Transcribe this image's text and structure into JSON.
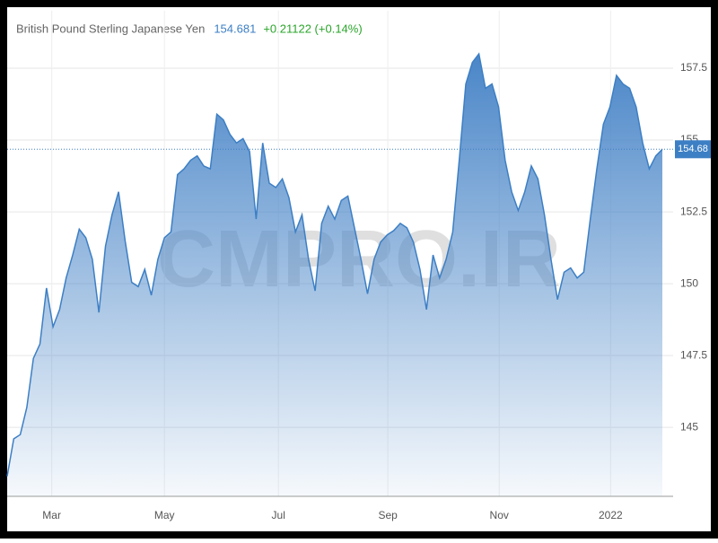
{
  "chart_data": {
    "type": "area",
    "title": "British Pound Sterling Japanese Yen",
    "price": "154.681",
    "change": "+0.21122 (+0.14%)",
    "watermark": "CMPRO.IR",
    "series": [
      {
        "name": "British Pound Sterling Japanese Yen",
        "color": "#3d7fc4",
        "values": [
          143.3,
          144.6,
          144.75,
          145.7,
          147.4,
          147.9,
          149.85,
          148.5,
          149.1,
          150.2,
          151.0,
          151.9,
          151.6,
          150.85,
          149.0,
          151.3,
          152.4,
          153.2,
          151.5,
          150.05,
          149.9,
          150.5,
          149.6,
          150.85,
          151.6,
          151.8,
          153.8,
          154.0,
          154.3,
          154.45,
          154.1,
          154.0,
          155.9,
          155.7,
          155.2,
          154.9,
          155.05,
          154.6,
          152.25,
          154.9,
          153.5,
          153.35,
          153.65,
          153.0,
          151.8,
          152.4,
          150.85,
          149.75,
          152.1,
          152.7,
          152.25,
          152.9,
          153.05,
          151.95,
          150.85,
          149.65,
          150.85,
          151.45,
          151.7,
          151.85,
          152.1,
          151.95,
          151.45,
          150.5,
          149.1,
          151.0,
          150.2,
          150.85,
          151.8,
          154.3,
          156.95,
          157.7,
          158.0,
          156.8,
          156.95,
          156.15,
          154.3,
          153.2,
          152.55,
          153.2,
          154.1,
          153.65,
          152.4,
          150.85,
          149.45,
          150.4,
          150.55,
          150.2,
          150.4,
          152.25,
          154.0,
          155.55,
          156.15,
          157.25,
          156.95,
          156.8,
          156.15,
          154.9,
          154.0,
          154.45,
          154.68
        ]
      }
    ],
    "last_label": {
      "value": 154.68,
      "label": "154.68"
    },
    "xlim": [
      0,
      100
    ],
    "xticks": [
      {
        "value": 6.8,
        "label": "Mar"
      },
      {
        "value": 24.0,
        "label": "May"
      },
      {
        "value": 41.4,
        "label": "Jul"
      },
      {
        "value": 58.1,
        "label": "Sep"
      },
      {
        "value": 75.1,
        "label": "Nov"
      },
      {
        "value": 92.1,
        "label": "2022"
      }
    ],
    "ylim": [
      142.6,
      159.5
    ],
    "yticks": [
      145,
      147.5,
      150,
      152.5,
      155,
      157.5
    ],
    "grid": true
  }
}
